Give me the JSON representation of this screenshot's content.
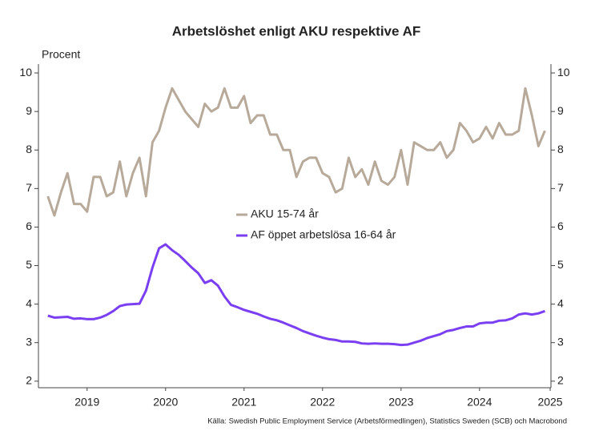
{
  "chart_data": {
    "type": "line",
    "title": "Arbetslöshet enligt AKU respektive AF",
    "y_label": "Procent",
    "source": "Källa: Swedish Public Employment Service (Arbetsförmedlingen), Statistics Sweden (SCB) och Macrobond",
    "x": [
      2019,
      2019.083,
      2019.167,
      2019.25,
      2019.333,
      2019.417,
      2019.5,
      2019.583,
      2019.667,
      2019.75,
      2019.833,
      2019.917,
      2020,
      2020.083,
      2020.167,
      2020.25,
      2020.333,
      2020.417,
      2020.5,
      2020.583,
      2020.667,
      2020.75,
      2020.833,
      2020.917,
      2021,
      2021.083,
      2021.167,
      2021.25,
      2021.333,
      2021.417,
      2021.5,
      2021.583,
      2021.667,
      2021.75,
      2021.833,
      2021.917,
      2022,
      2022.083,
      2022.167,
      2022.25,
      2022.333,
      2022.417,
      2022.5,
      2022.583,
      2022.667,
      2022.75,
      2022.833,
      2022.917,
      2023,
      2023.083,
      2023.167,
      2023.25,
      2023.333,
      2023.417,
      2023.5,
      2023.583,
      2023.667,
      2023.75,
      2023.833,
      2023.917,
      2024,
      2024.083,
      2024.167,
      2024.25,
      2024.333,
      2024.417,
      2024.5,
      2024.583,
      2024.667,
      2024.75,
      2024.833,
      2024.917,
      2025,
      2025.083,
      2025.167,
      2025.25,
      2025.333
    ],
    "series": [
      {
        "name": "AKU 15-74 år",
        "color": "#b8aa9a",
        "values": [
          6.8,
          6.3,
          6.9,
          7.4,
          6.6,
          6.6,
          6.4,
          7.3,
          7.3,
          6.8,
          6.9,
          7.7,
          6.8,
          7.4,
          7.8,
          6.8,
          8.2,
          8.5,
          9.1,
          9.6,
          9.3,
          9.0,
          8.8,
          8.6,
          9.2,
          9.0,
          9.1,
          9.6,
          9.1,
          9.1,
          9.4,
          8.7,
          8.9,
          8.9,
          8.4,
          8.4,
          8.0,
          8.0,
          7.3,
          7.7,
          7.8,
          7.8,
          7.4,
          7.3,
          6.9,
          7.0,
          7.8,
          7.3,
          7.5,
          7.1,
          7.7,
          7.2,
          7.1,
          7.3,
          8.0,
          7.1,
          8.2,
          8.1,
          8.0,
          8.0,
          8.2,
          7.8,
          8.0,
          8.7,
          8.5,
          8.2,
          8.3,
          8.6,
          8.3,
          8.7,
          8.4,
          8.4,
          8.5,
          9.6,
          8.9,
          8.1,
          8.5
        ]
      },
      {
        "name": "AF öppet arbetslösa 16-64 år",
        "color": "#7b3ff2",
        "values": [
          3.7,
          3.65,
          3.66,
          3.67,
          3.62,
          3.63,
          3.61,
          3.61,
          3.65,
          3.72,
          3.82,
          3.95,
          3.99,
          4.0,
          4.01,
          4.35,
          4.95,
          5.45,
          5.55,
          5.4,
          5.28,
          5.12,
          4.95,
          4.8,
          4.55,
          4.62,
          4.48,
          4.2,
          3.98,
          3.92,
          3.85,
          3.8,
          3.75,
          3.68,
          3.62,
          3.58,
          3.52,
          3.45,
          3.38,
          3.3,
          3.24,
          3.18,
          3.13,
          3.09,
          3.07,
          3.03,
          3.03,
          3.02,
          2.98,
          2.97,
          2.98,
          2.97,
          2.97,
          2.96,
          2.94,
          2.95,
          3.0,
          3.05,
          3.12,
          3.17,
          3.22,
          3.3,
          3.33,
          3.38,
          3.42,
          3.42,
          3.5,
          3.52,
          3.52,
          3.57,
          3.58,
          3.63,
          3.73,
          3.76,
          3.73,
          3.76,
          3.82
        ]
      }
    ],
    "xlim": [
      2018.88,
      2025.41
    ],
    "xticks": [
      {
        "value": 2019.5,
        "label": "2019"
      },
      {
        "value": 2020.5,
        "label": "2020"
      },
      {
        "value": 2021.5,
        "label": "2021"
      },
      {
        "value": 2022.5,
        "label": "2022"
      },
      {
        "value": 2023.5,
        "label": "2023"
      },
      {
        "value": 2024.5,
        "label": "2024"
      },
      {
        "value": 2025.4,
        "label": "2025"
      }
    ],
    "ylim": [
      1.83,
      10.23
    ],
    "yticks": [
      2,
      3,
      4,
      5,
      6,
      7,
      8,
      9,
      10
    ],
    "right_axis_mirror": true,
    "grid": false,
    "legend": "center"
  }
}
